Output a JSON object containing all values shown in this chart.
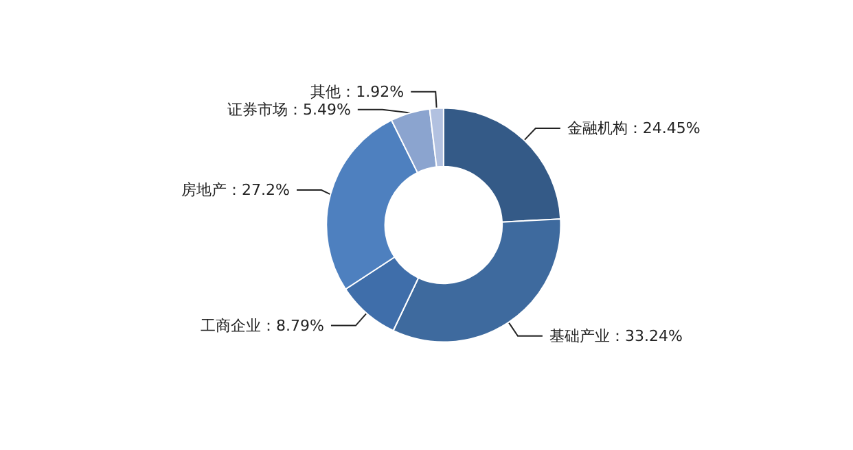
{
  "chart_data": {
    "type": "donut",
    "categories": [
      "金融机构",
      "基础产业",
      "工商企业",
      "房地产",
      "证券市场",
      "其他"
    ],
    "values": [
      24.45,
      33.24,
      8.79,
      27.2,
      5.49,
      1.92
    ],
    "value_labels": [
      "24.45%",
      "33.24%",
      "8.79%",
      "27.2%",
      "5.49%",
      "1.92%"
    ],
    "colors": [
      "#345a87",
      "#3e6a9e",
      "#3f6eaa",
      "#4e80bf",
      "#8ba4cf",
      "#b2c1e0"
    ],
    "legend": false
  }
}
